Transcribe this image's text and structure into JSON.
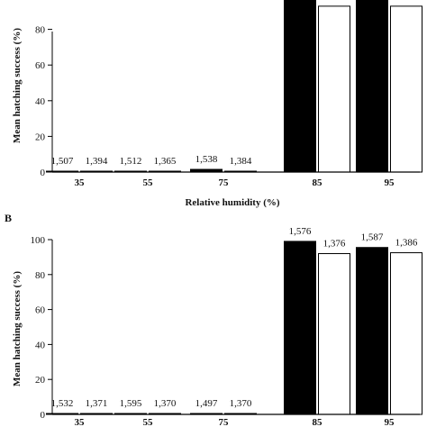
{
  "chart_data": [
    {
      "panel_label": "",
      "type": "bar",
      "categories": [
        "35",
        "55",
        "75",
        "85",
        "95"
      ],
      "series": [
        {
          "fill": "#000000",
          "values": [
            0,
            0,
            1.5,
            100,
            100
          ],
          "labels": [
            "1,507",
            "1,512",
            "1,538",
            "",
            ""
          ]
        },
        {
          "fill": "#ffffff",
          "values": [
            0,
            0,
            0,
            93,
            93
          ],
          "labels": [
            "1,394",
            "1,365",
            "1,384",
            "",
            ""
          ]
        }
      ],
      "xlabel": "Relative humidity (%)",
      "ylabel": "Mean hatching success (%)",
      "yticks": [
        "0",
        "20",
        "40",
        "60",
        "80"
      ],
      "ylim": [
        0,
        100
      ]
    },
    {
      "panel_label": "B",
      "type": "bar",
      "categories": [
        "35",
        "55",
        "75",
        "85",
        "95"
      ],
      "series": [
        {
          "fill": "#000000",
          "values": [
            0,
            0,
            0,
            99,
            95.5
          ],
          "labels": [
            "1,532",
            "1,595",
            "1,497",
            "1,576",
            "1,587"
          ]
        },
        {
          "fill": "#ffffff",
          "values": [
            0,
            0,
            0,
            92,
            92.5
          ],
          "labels": [
            "1,371",
            "1,370",
            "1,370",
            "1,376",
            "1,386"
          ]
        }
      ],
      "xlabel": "",
      "ylabel": "Mean hatching success (%)",
      "yticks": [
        "0",
        "20",
        "40",
        "60",
        "80",
        "100"
      ],
      "ylim": [
        0,
        100
      ]
    }
  ]
}
